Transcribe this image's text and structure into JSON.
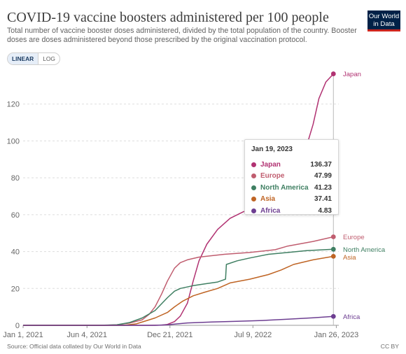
{
  "header": {
    "title": "COVID-19 vaccine boosters administered per 100 people",
    "subtitle": "Total number of vaccine booster doses administered, divided by the total population of the country. Booster doses are doses administered beyond those prescribed by the original vaccination protocol.",
    "logo_line1": "Our World",
    "logo_line2": "in Data"
  },
  "controls": {
    "linear_label": "LINEAR",
    "log_label": "LOG",
    "active": "linear"
  },
  "footer": {
    "source": "Source: Official data collated by Our World in Data",
    "license": "CC BY"
  },
  "colors": {
    "japan": "#b13272",
    "europe": "#c05d6f",
    "north_america": "#3f7f62",
    "asia": "#bf6424",
    "africa": "#6d3e91",
    "grid": "#dddddd",
    "axis": "#666666"
  },
  "tooltip": {
    "date": "Jan 19, 2023",
    "rows": [
      {
        "name": "Japan",
        "value": "136.37",
        "color": "#b13272"
      },
      {
        "name": "Europe",
        "value": "47.99",
        "color": "#c05d6f"
      },
      {
        "name": "North America",
        "value": "41.23",
        "color": "#3f7f62"
      },
      {
        "name": "Asia",
        "value": "37.41",
        "color": "#bf6424"
      },
      {
        "name": "Africa",
        "value": "4.83",
        "color": "#6d3e91"
      }
    ]
  },
  "chart_data": {
    "type": "line",
    "title": "COVID-19 vaccine boosters administered per 100 people",
    "xlabel": "",
    "ylabel": "",
    "ylim": [
      0,
      140
    ],
    "yticks": [
      0,
      20,
      40,
      60,
      80,
      100,
      120
    ],
    "xlim": [
      "2021-01-01",
      "2023-02-01"
    ],
    "xticks": [
      {
        "date": "2021-01-01",
        "label": "Jan 1, 2021"
      },
      {
        "date": "2021-06-04",
        "label": "Jun 4, 2021"
      },
      {
        "date": "2021-12-21",
        "label": "Dec 21, 2021"
      },
      {
        "date": "2022-07-09",
        "label": "Jul 9, 2022"
      },
      {
        "date": "2023-01-26",
        "label": "Jan 26, 2023"
      }
    ],
    "grid": true,
    "legend": "line-end labels",
    "series": [
      {
        "name": "Japan",
        "color": "#b13272",
        "points": [
          [
            "2021-01-01",
            0
          ],
          [
            "2021-11-01",
            0
          ],
          [
            "2021-12-01",
            0.1
          ],
          [
            "2021-12-15",
            0.5
          ],
          [
            "2022-01-01",
            2
          ],
          [
            "2022-01-15",
            5
          ],
          [
            "2022-02-01",
            12
          ],
          [
            "2022-02-15",
            24
          ],
          [
            "2022-03-01",
            35
          ],
          [
            "2022-03-20",
            44
          ],
          [
            "2022-04-15",
            52
          ],
          [
            "2022-05-15",
            58
          ],
          [
            "2022-06-15",
            61.5
          ],
          [
            "2022-07-15",
            64
          ],
          [
            "2022-08-15",
            66.5
          ],
          [
            "2022-09-15",
            71
          ],
          [
            "2022-10-15",
            79
          ],
          [
            "2022-11-01",
            86
          ],
          [
            "2022-11-15",
            97
          ],
          [
            "2022-12-01",
            109
          ],
          [
            "2022-12-15",
            123
          ],
          [
            "2023-01-01",
            132
          ],
          [
            "2023-01-19",
            136.37
          ]
        ]
      },
      {
        "name": "Europe",
        "color": "#c05d6f",
        "points": [
          [
            "2021-01-01",
            0
          ],
          [
            "2021-07-15",
            0
          ],
          [
            "2021-08-15",
            0.3
          ],
          [
            "2021-09-15",
            1.2
          ],
          [
            "2021-10-15",
            3
          ],
          [
            "2021-11-01",
            6
          ],
          [
            "2021-11-15",
            10
          ],
          [
            "2021-12-01",
            17
          ],
          [
            "2021-12-15",
            24
          ],
          [
            "2022-01-01",
            31
          ],
          [
            "2022-01-15",
            34
          ],
          [
            "2022-02-01",
            35.5
          ],
          [
            "2022-03-01",
            37
          ],
          [
            "2022-05-01",
            38.5
          ],
          [
            "2022-07-01",
            39.5
          ],
          [
            "2022-09-01",
            41
          ],
          [
            "2022-10-01",
            43
          ],
          [
            "2022-12-01",
            45.5
          ],
          [
            "2023-01-19",
            47.99
          ]
        ]
      },
      {
        "name": "North America",
        "color": "#3f7f62",
        "points": [
          [
            "2021-01-01",
            0
          ],
          [
            "2021-07-01",
            0
          ],
          [
            "2021-08-15",
            0.3
          ],
          [
            "2021-09-15",
            1.5
          ],
          [
            "2021-10-15",
            4
          ],
          [
            "2021-11-15",
            8
          ],
          [
            "2021-12-15",
            15
          ],
          [
            "2022-01-01",
            18.5
          ],
          [
            "2022-01-15",
            20
          ],
          [
            "2022-02-15",
            21.5
          ],
          [
            "2022-03-15",
            22.5
          ],
          [
            "2022-04-15",
            23.5
          ],
          [
            "2022-05-04",
            25
          ],
          [
            "2022-05-06",
            33
          ],
          [
            "2022-06-01",
            35
          ],
          [
            "2022-07-01",
            36.5
          ],
          [
            "2022-08-15",
            38.5
          ],
          [
            "2022-10-01",
            39.5
          ],
          [
            "2022-11-15",
            40.5
          ],
          [
            "2023-01-19",
            41.23
          ]
        ]
      },
      {
        "name": "Asia",
        "color": "#bf6424",
        "points": [
          [
            "2021-01-01",
            0
          ],
          [
            "2021-09-01",
            0
          ],
          [
            "2021-10-01",
            0.8
          ],
          [
            "2021-11-01",
            3
          ],
          [
            "2021-11-15",
            4
          ],
          [
            "2021-12-15",
            7
          ],
          [
            "2022-01-01",
            10
          ],
          [
            "2022-01-20",
            13
          ],
          [
            "2022-02-15",
            16
          ],
          [
            "2022-03-15",
            18
          ],
          [
            "2022-04-15",
            20
          ],
          [
            "2022-05-15",
            23
          ],
          [
            "2022-07-01",
            25
          ],
          [
            "2022-08-15",
            27.5
          ],
          [
            "2022-09-15",
            30
          ],
          [
            "2022-10-15",
            33
          ],
          [
            "2022-12-01",
            35.5
          ],
          [
            "2023-01-19",
            37.41
          ]
        ]
      },
      {
        "name": "Africa",
        "color": "#6d3e91",
        "points": [
          [
            "2021-01-01",
            0
          ],
          [
            "2021-11-15",
            0
          ],
          [
            "2021-12-15",
            0.3
          ],
          [
            "2022-02-01",
            1.3
          ],
          [
            "2022-04-01",
            1.8
          ],
          [
            "2022-06-01",
            2.2
          ],
          [
            "2022-08-01",
            2.6
          ],
          [
            "2022-10-01",
            3.3
          ],
          [
            "2022-12-01",
            4.1
          ],
          [
            "2023-01-19",
            4.83
          ]
        ]
      }
    ]
  }
}
